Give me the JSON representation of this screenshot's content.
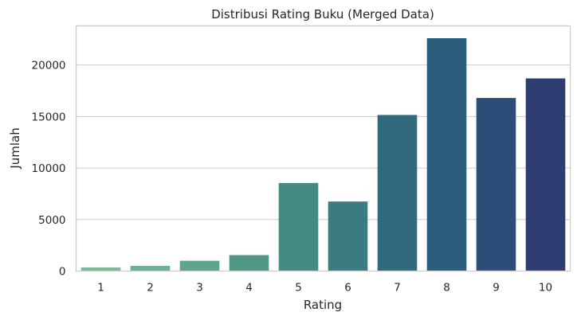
{
  "chart_data": {
    "type": "bar",
    "title": "Distribusi Rating Buku (Merged Data)",
    "xlabel": "Rating",
    "ylabel": "Jumlah",
    "categories": [
      "1",
      "2",
      "3",
      "4",
      "5",
      "6",
      "7",
      "8",
      "9",
      "10"
    ],
    "values": [
      350,
      500,
      1000,
      1550,
      8550,
      6750,
      15150,
      22600,
      16800,
      18700
    ],
    "ylim": [
      0,
      23800
    ],
    "yticks": [
      0,
      5000,
      10000,
      15000,
      20000
    ],
    "grid": true,
    "colors": [
      "#7cb798",
      "#6cb092",
      "#5ea58b",
      "#529886",
      "#468b83",
      "#3b7c80",
      "#31697d",
      "#2a5c7b",
      "#2b4d78",
      "#2e3d71"
    ]
  }
}
